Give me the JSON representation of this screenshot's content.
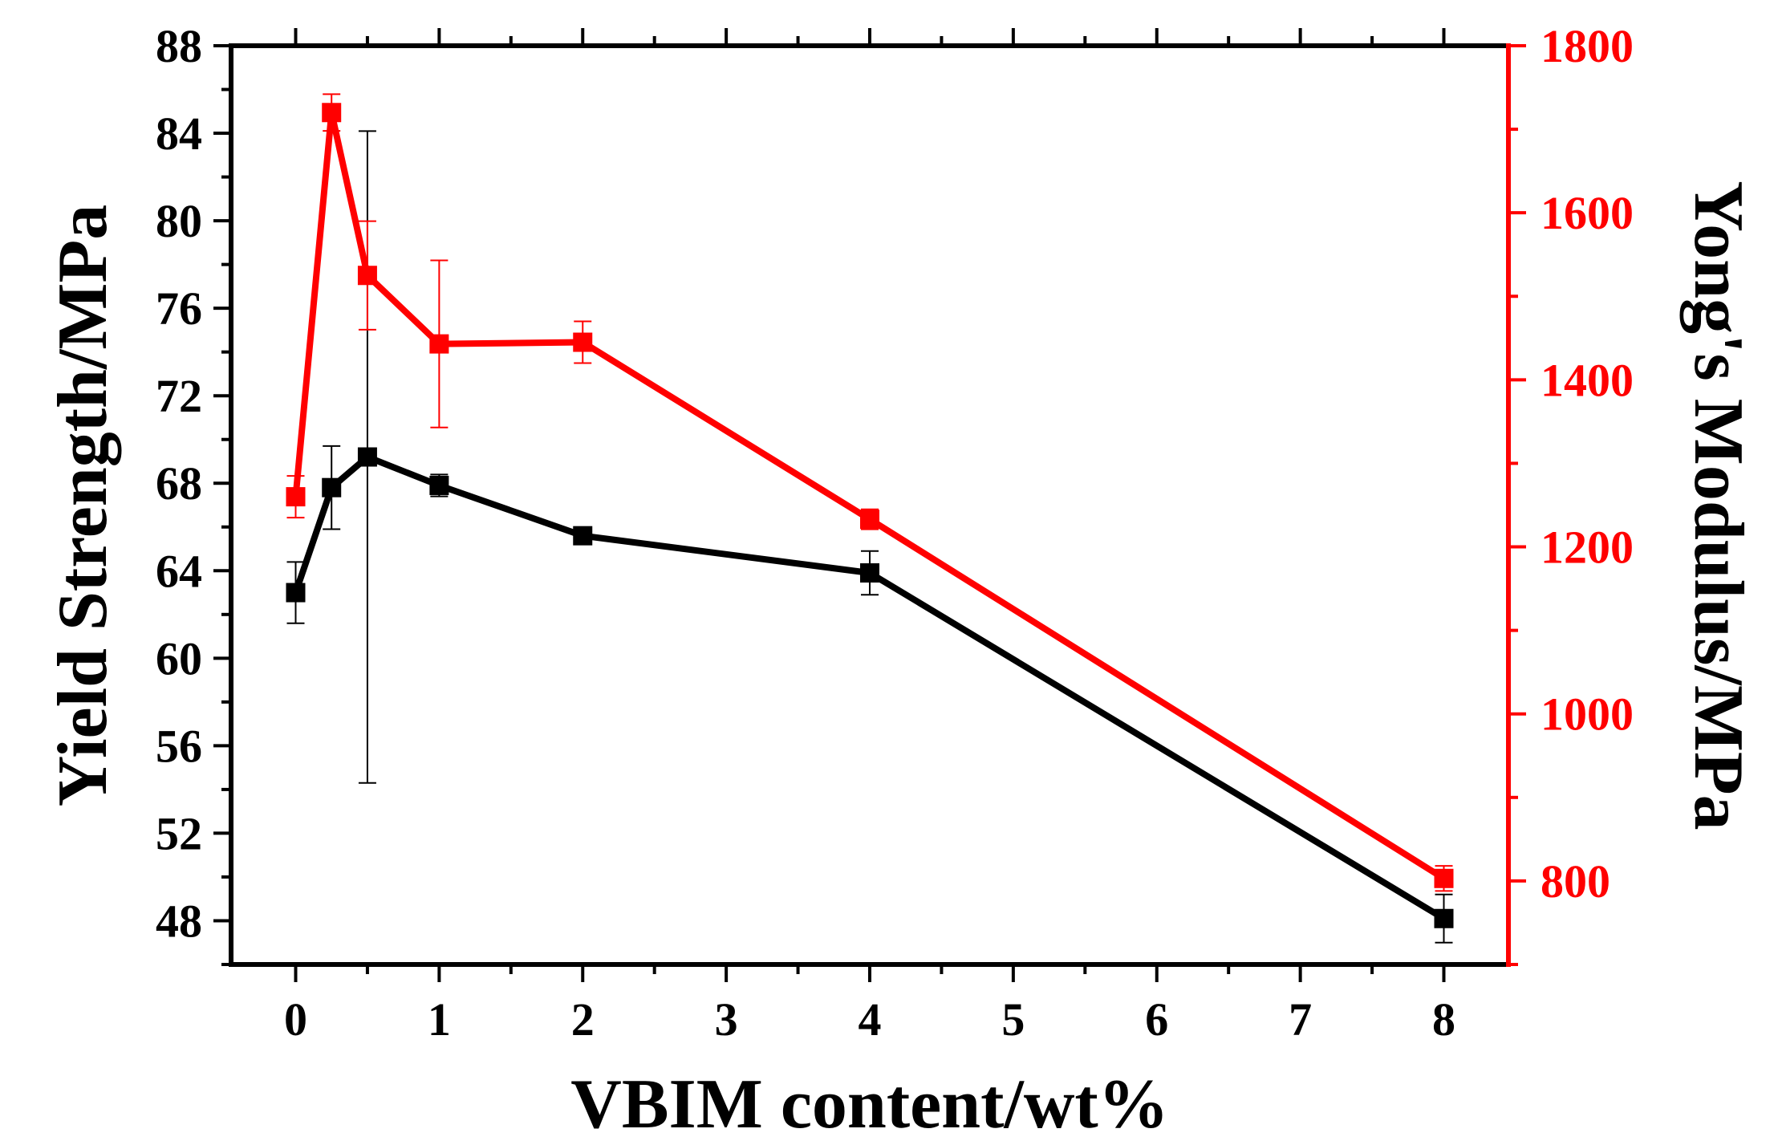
{
  "chart_data": {
    "type": "line",
    "xlabel": "VBIM content/wt%",
    "ylabel_left": "Yield Strength/MPa",
    "ylabel_right": "Yong's Modulus/MPa",
    "xlim": [
      -0.45,
      8.45
    ],
    "ylim_left": [
      46,
      88
    ],
    "ylim_right": [
      700,
      1800
    ],
    "x_ticks": [
      0,
      1,
      2,
      3,
      4,
      5,
      6,
      7,
      8
    ],
    "y_left_ticks": [
      48,
      52,
      56,
      60,
      64,
      68,
      72,
      76,
      80,
      84,
      88
    ],
    "y_right_ticks": [
      800,
      1000,
      1200,
      1400,
      1600,
      1800
    ],
    "colors": {
      "left_axis": "#000000",
      "right_axis": "#ff0000"
    },
    "series": [
      {
        "name": "Yield Strength",
        "axis": "left",
        "color": "#000000",
        "x": [
          0,
          0.25,
          0.5,
          1,
          2,
          4,
          8
        ],
        "values": [
          63.0,
          67.8,
          69.2,
          67.9,
          65.6,
          63.9,
          48.1
        ],
        "errors": [
          1.4,
          1.9,
          14.9,
          0.5,
          0.3,
          1.0,
          1.1
        ]
      },
      {
        "name": "Young's Modulus",
        "axis": "right",
        "color": "#ff0000",
        "x": [
          0,
          0.25,
          0.5,
          1,
          2,
          4,
          8
        ],
        "values": [
          1260,
          1720,
          1525,
          1443,
          1445,
          1233,
          803
        ],
        "errors": [
          25,
          22,
          65,
          100,
          25,
          12,
          15
        ]
      }
    ]
  }
}
